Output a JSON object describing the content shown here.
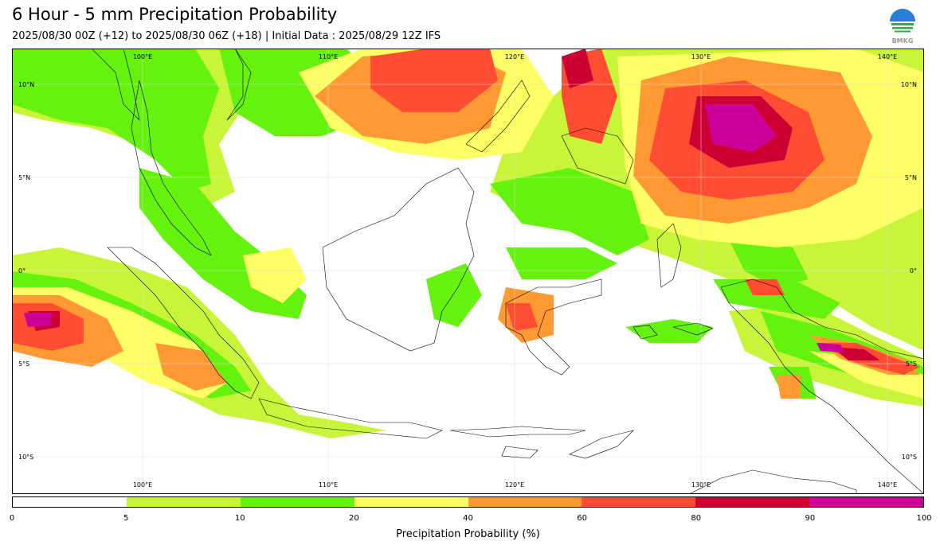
{
  "header": {
    "title": "6 Hour - 5 mm Precipitation Probability",
    "subtitle": "2025/08/30 00Z (+12) to 2025/08/30 06Z (+18) | Initial Data : 2025/08/29 12Z IFS",
    "logo_text": "BMKG"
  },
  "map": {
    "lon_labels": [
      "100°E",
      "110°E",
      "120°E",
      "130°E",
      "140°E"
    ],
    "lat_labels_left": [
      "10°N",
      "5°N",
      "0°",
      "5°S",
      "10°S"
    ],
    "lat_labels_right": [
      "10°N",
      "5°N",
      "0°",
      "5°S",
      "10°S"
    ],
    "lon_range": [
      93,
      142
    ],
    "lat_range": [
      -12,
      11
    ]
  },
  "colorbar": {
    "title": "Precipitation Probability (%)",
    "ticks": [
      "0",
      "5",
      "10",
      "20",
      "40",
      "60",
      "80",
      "90",
      "100"
    ],
    "colors": [
      "#ffffff",
      "#c8f53a",
      "#66f20f",
      "#ffff66",
      "#ff9933",
      "#ff4d33",
      "#cc0033",
      "#cc0099"
    ]
  }
}
